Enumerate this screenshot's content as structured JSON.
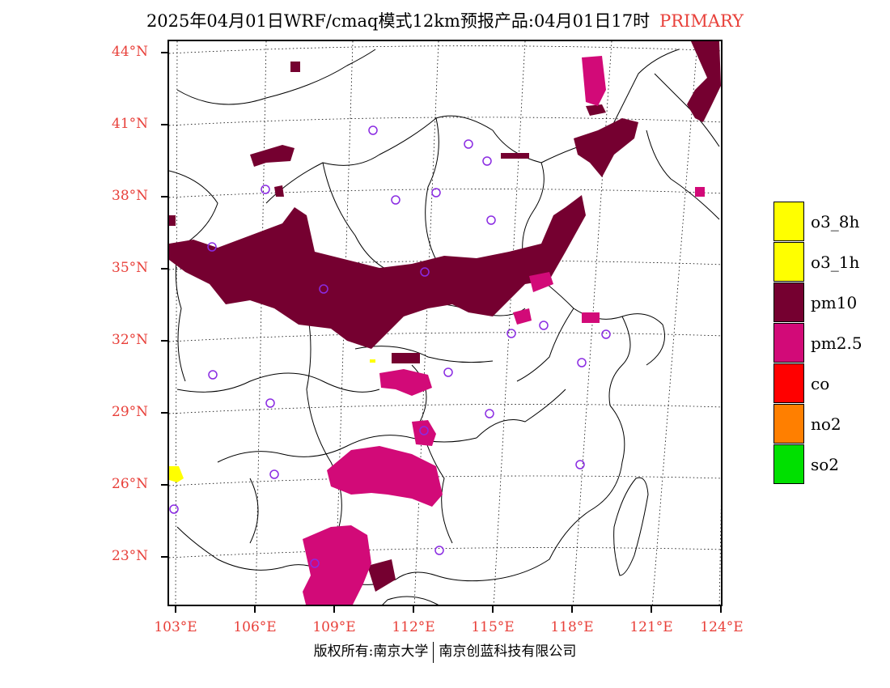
{
  "title": {
    "text": "2025年04月01日WRF/cmaq模式12km预报产品:04月01日17时",
    "tag": "PRIMARY"
  },
  "axes": {
    "lat_labels": [
      "44°N",
      "41°N",
      "38°N",
      "35°N",
      "32°N",
      "29°N",
      "26°N",
      "23°N"
    ],
    "lon_labels": [
      "103°E",
      "106°E",
      "109°E",
      "112°E",
      "115°E",
      "118°E",
      "121°E",
      "124°E"
    ]
  },
  "legend": [
    {
      "label": "o3_8h",
      "color": "#ffff00"
    },
    {
      "label": "o3_1h",
      "color": "#ffff00"
    },
    {
      "label": "pm10",
      "color": "#750030"
    },
    {
      "label": "pm2.5",
      "color": "#d20a78"
    },
    {
      "label": "co",
      "color": "#ff0000"
    },
    {
      "label": "no2",
      "color": "#ff7f00"
    },
    {
      "label": "so2",
      "color": "#00e000"
    }
  ],
  "footer": {
    "left": "版权所有:南京大学",
    "right": "南京创蓝科技有限公司"
  },
  "colors": {
    "pm10": "#750030",
    "pm25": "#d20a78",
    "o3": "#ffff00",
    "label": "#e8403a",
    "station": "#8a2be2"
  }
}
